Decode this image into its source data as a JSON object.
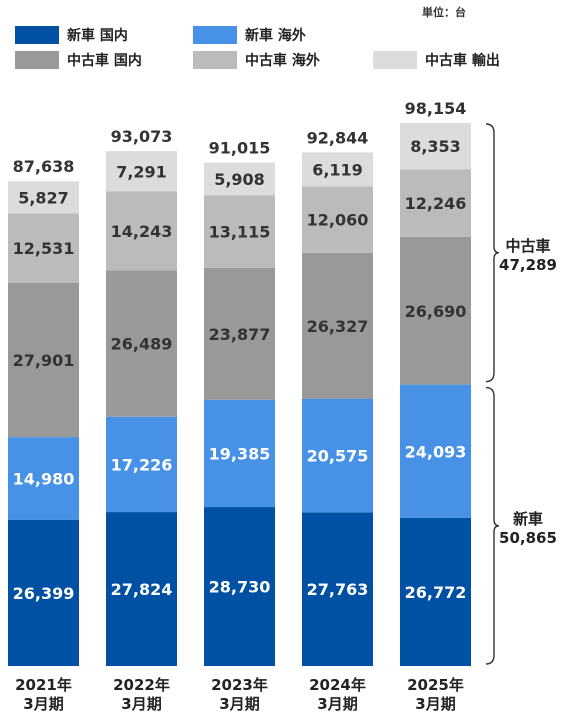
{
  "chart_data": {
    "type": "bar",
    "stacked": true,
    "unit_label": "単位：台",
    "categories": [
      "2021年\n3月期",
      "2022年\n3月期",
      "2023年\n3月期",
      "2024年\n3月期",
      "2025年\n3月期"
    ],
    "series": [
      {
        "name": "新車 国内",
        "color": "#0050a3",
        "values": [
          26399,
          27824,
          28730,
          27763,
          26772
        ]
      },
      {
        "name": "新車 海外",
        "color": "#4791e6",
        "values": [
          14980,
          17226,
          19385,
          20575,
          24093
        ]
      },
      {
        "name": "中古車 国内",
        "color": "#999999",
        "values": [
          27901,
          26489,
          23877,
          26327,
          26690
        ]
      },
      {
        "name": "中古車 海外",
        "color": "#bbbbbb",
        "values": [
          12531,
          14243,
          13115,
          12060,
          12246
        ]
      },
      {
        "name": "中古車 輸出",
        "color": "#dcdcdc",
        "values": [
          5827,
          7291,
          5908,
          6119,
          8353
        ]
      }
    ],
    "totals": [
      "87,638",
      "93,073",
      "91,015",
      "92,844",
      "98,154"
    ],
    "value_labels": [
      [
        "26,399",
        "27,824",
        "28,730",
        "27,763",
        "26,772"
      ],
      [
        "14,980",
        "17,226",
        "19,385",
        "20,575",
        "24,093"
      ],
      [
        "27,901",
        "26,489",
        "23,877",
        "26,327",
        "26,690"
      ],
      [
        "12,531",
        "14,243",
        "13,115",
        "12,060",
        "12,246"
      ],
      [
        "5,827",
        "7,291",
        "5,908",
        "6,119",
        "8,353"
      ]
    ],
    "brackets": [
      {
        "label": "中古車",
        "value": "47,289"
      },
      {
        "label": "新車",
        "value": "50,865"
      }
    ],
    "legend_position": "top",
    "grid": false
  }
}
